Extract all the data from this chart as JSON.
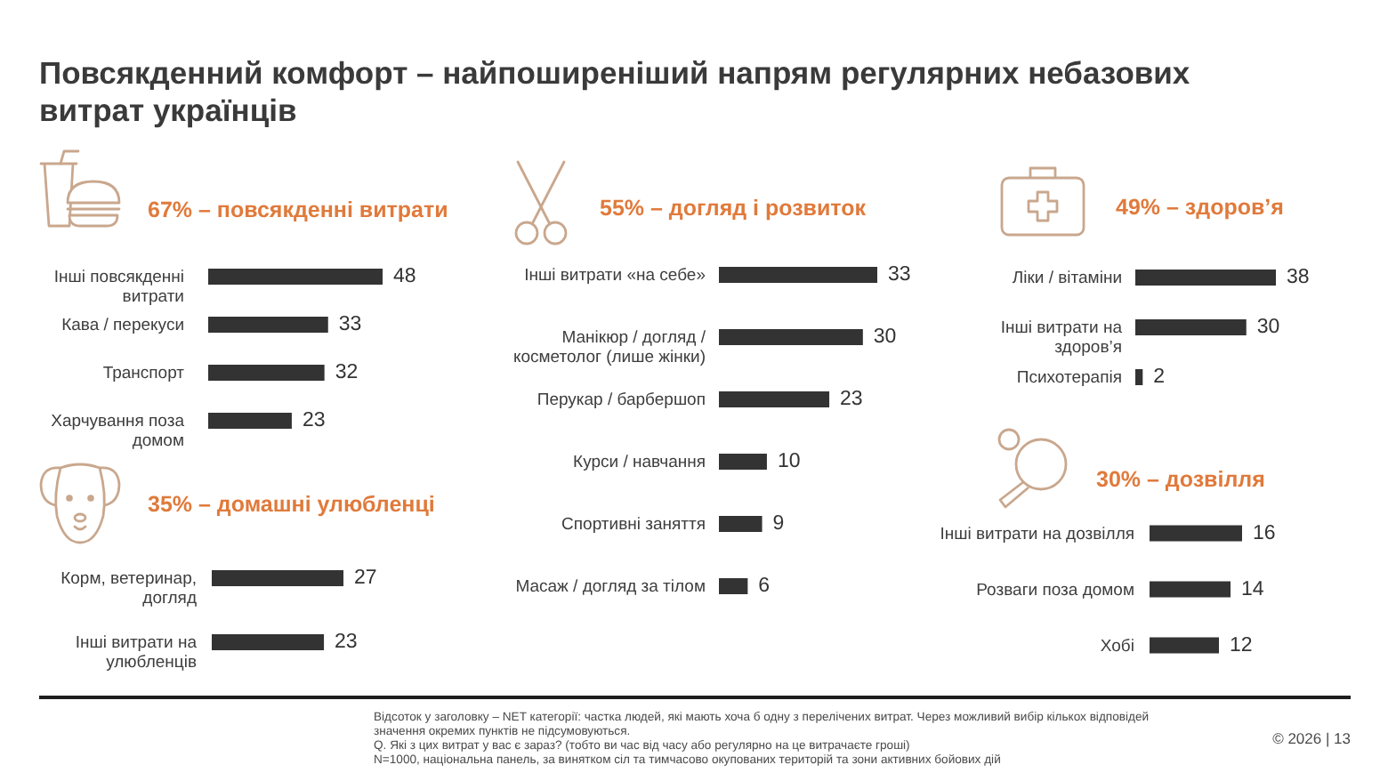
{
  "chart_data": [
    {
      "type": "other",
      "title": "Повсякденний комфорт – найпоширеніший напрям регулярних небазових витрат українців"
    },
    {
      "type": "bar",
      "orientation": "horizontal",
      "title": "67% – повсякденні витрати",
      "categories": [
        "Інші повсякденні витрати",
        "Кава / перекуси",
        "Транспорт",
        "Харчування поза домом"
      ],
      "values": [
        48,
        33,
        32,
        23
      ],
      "color": "#333333",
      "data_labels": true,
      "tick_labels": "y"
    },
    {
      "type": "bar",
      "orientation": "horizontal",
      "title": "55% – догляд і розвиток",
      "categories": [
        "Інші витрати «на себе»",
        "Манікюр / догляд / косметолог (лише жінки)",
        "Перукар / барбершоп",
        "Курси / навчання",
        "Спортивні заняття",
        "Масаж / догляд за тілом"
      ],
      "values": [
        33,
        30,
        23,
        10,
        9,
        6
      ],
      "color": "#333333",
      "data_labels": true,
      "tick_labels": "y"
    },
    {
      "type": "bar",
      "orientation": "horizontal",
      "title": "49% – здоров’я",
      "categories": [
        "Ліки / вітаміни",
        "Інші витрати на здоров’я",
        "Психотерапія"
      ],
      "values": [
        38,
        30,
        2
      ],
      "color": "#333333",
      "data_labels": true,
      "tick_labels": "y"
    },
    {
      "type": "bar",
      "orientation": "horizontal",
      "title": "35% – домашні улюбленці",
      "categories": [
        "Корм, ветеринар, догляд",
        "Інші витрати на улюбленців"
      ],
      "values": [
        27,
        23
      ],
      "color": "#333333",
      "data_labels": true,
      "tick_labels": "y"
    },
    {
      "type": "bar",
      "orientation": "horizontal",
      "title": "30% – дозвілля",
      "categories": [
        "Інші витрати на дозвілля",
        "Розваги поза домом",
        "Хобі"
      ],
      "values": [
        16,
        14,
        12
      ],
      "color": "#333333",
      "data_labels": true,
      "tick_labels": "y"
    },
    {
      "type": "other",
      "annotations": [
        "Відсоток у заголовку – NET категорії: частка людей, які мають хоча б одну з перелічених витрат. Через можливий вибір кількох відповідей значення окремих пунктів не підсумовуються.",
        "Q. Які з цих витрат у вас є зараз? (тобто ви час від часу або регулярно на це витрачаєте гроші)",
        "N=1000, національна панель, за винятком сіл та тимчасово окупованих територій та зони активних бойових дій",
        "© 2026 | 13"
      ]
    }
  ]
}
